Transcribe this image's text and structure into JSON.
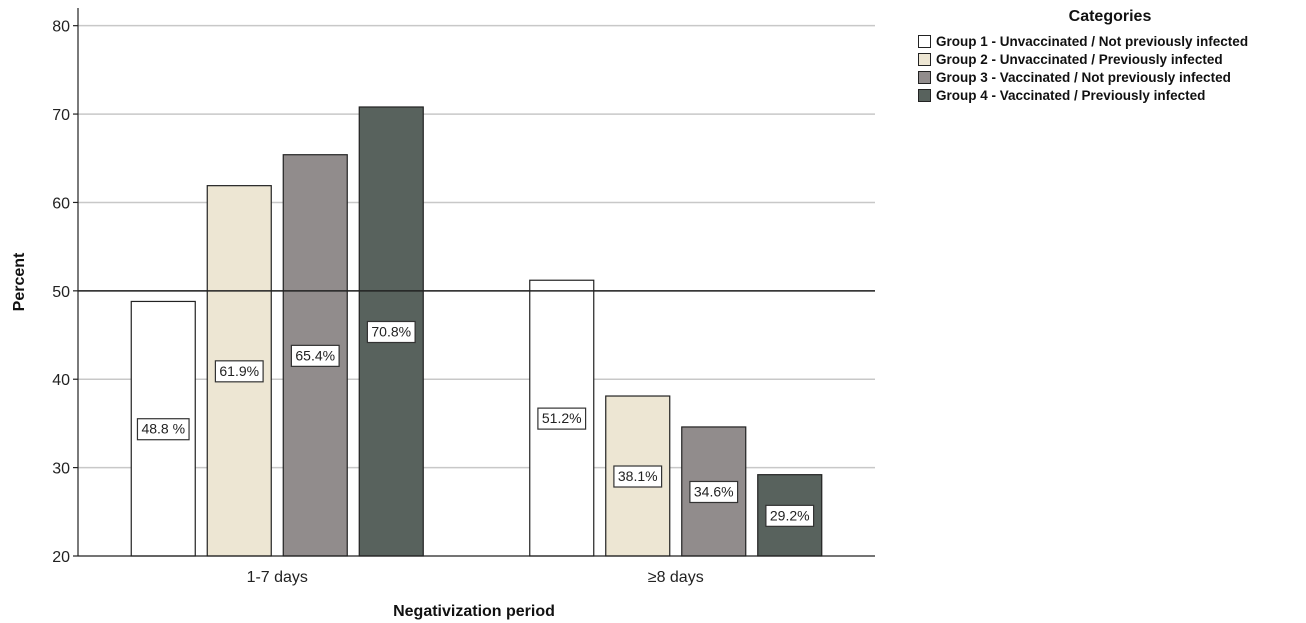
{
  "chart_data": {
    "type": "bar",
    "categories": [
      "1-7 days",
      "≥8 days"
    ],
    "series": [
      {
        "name": "Group 1 - Unvaccinated / Not previously infected",
        "values": [
          48.8,
          51.2
        ],
        "labels": [
          "48.8 %",
          "51.2%"
        ],
        "color": "#ffffff"
      },
      {
        "name": "Group 2 - Unvaccinated / Previously infected",
        "values": [
          61.9,
          38.1
        ],
        "labels": [
          "61.9%",
          "38.1%"
        ],
        "color": "#ede6d3"
      },
      {
        "name": "Group 3 - Vaccinated / Not previously infected",
        "values": [
          65.4,
          34.6
        ],
        "labels": [
          "65.4%",
          "34.6%"
        ],
        "color": "#918c8c"
      },
      {
        "name": "Group 4 - Vaccinated / Previously infected",
        "values": [
          70.8,
          29.2
        ],
        "labels": [
          "70.8%",
          "29.2%"
        ],
        "color": "#58625d"
      }
    ],
    "xlabel": "Negativization period",
    "ylabel": "Percent",
    "ylim": [
      20,
      82
    ],
    "yticks": [
      "20",
      "30",
      "40",
      "50",
      "60",
      "70",
      "80"
    ],
    "reference_line": 50,
    "grid": true,
    "legend_title": "Categories",
    "legend_position": "top-right"
  }
}
